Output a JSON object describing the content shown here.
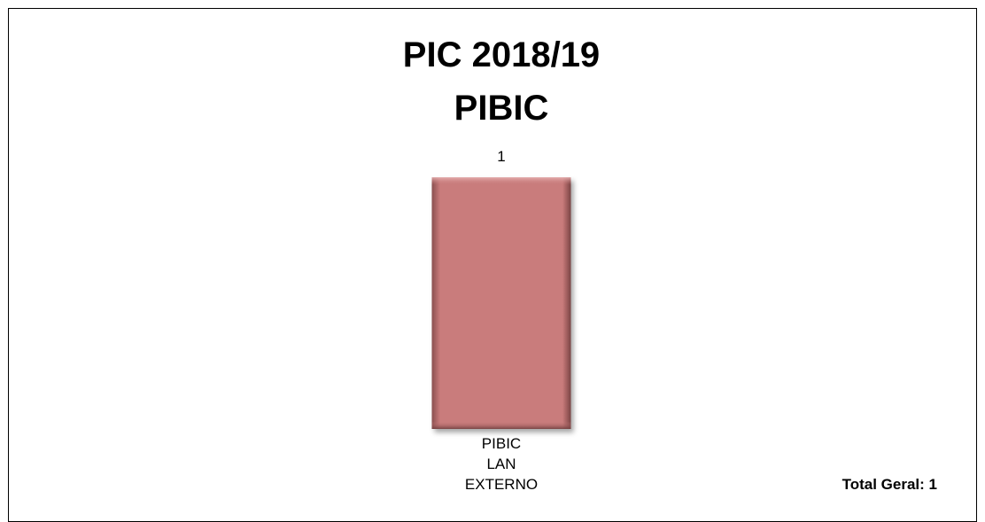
{
  "chart_data": {
    "type": "bar",
    "title_lines": [
      "PIC 2018/19",
      "PIBIC"
    ],
    "categories": [
      {
        "lines": [
          "PIBIC",
          "LAN",
          "EXTERNO"
        ]
      }
    ],
    "values": [
      1
    ],
    "data_labels": [
      "1"
    ],
    "ylim": [
      0,
      1
    ],
    "grid": false,
    "legend": "none",
    "bar_color": "#c97b7b",
    "total_label": "Total Geral: 1"
  }
}
